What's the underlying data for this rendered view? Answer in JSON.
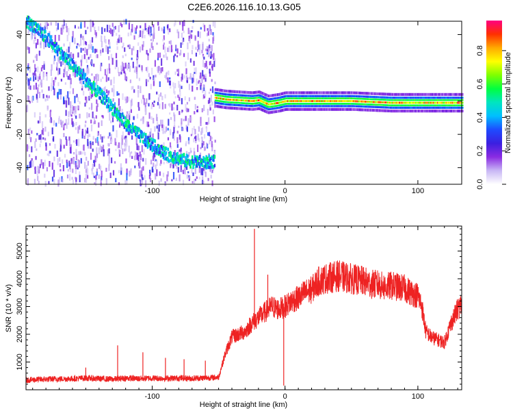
{
  "title": "C2E6.2026.116.10.13.G05",
  "colorbar": {
    "label": "Normalized spectral amplitude",
    "ticks": [
      "0.0",
      "0.2",
      "0.4",
      "0.6",
      "0.8"
    ],
    "tick_values": [
      0.0,
      0.2,
      0.4,
      0.6,
      0.8
    ],
    "range": [
      0.0,
      0.98
    ],
    "colormap": [
      "#ffffff",
      "#c9b8f5",
      "#8a2be2",
      "#3b1fe0",
      "#1e4bff",
      "#00bfff",
      "#00e5c0",
      "#00ff40",
      "#7fff00",
      "#ffff00",
      "#ffaa00",
      "#ff3000",
      "#ff0080"
    ]
  },
  "chart_data": [
    {
      "type": "heatmap",
      "title": "C2E6.2026.116.10.13.G05",
      "xlabel": "Height of straight line (km)",
      "ylabel": "Frequency (Hz)",
      "xlim": [
        -195,
        133
      ],
      "ylim": [
        -50,
        48
      ],
      "xticks": [
        -100,
        0,
        100
      ],
      "yticks": [
        -40,
        -20,
        0,
        20,
        40
      ],
      "xtick_labels": [
        "-100",
        "0",
        "100"
      ],
      "ytick_labels": [
        "-40",
        "-20",
        "0",
        "20",
        "40"
      ],
      "noise_region": {
        "x": [
          -195,
          -53
        ],
        "level": 0.15
      },
      "ridge": {
        "x": [
          -195,
          -180,
          -165,
          -150,
          -135,
          -120,
          -105,
          -90,
          -75,
          -60,
          -53
        ],
        "y": [
          48,
          38,
          25,
          12,
          0,
          -14,
          -24,
          -32,
          -36,
          -37,
          -36
        ],
        "level": 0.45
      },
      "band": {
        "x": [
          -53,
          -45,
          -35,
          -25,
          -20,
          -13,
          -5,
          0,
          20,
          50,
          80,
          90,
          110,
          133
        ],
        "y": [
          2,
          1,
          0.5,
          0,
          0.5,
          -2,
          -1,
          0,
          0,
          0,
          -1,
          -1,
          -1,
          -1
        ],
        "level": 0.9
      }
    },
    {
      "type": "line",
      "xlabel": "Height of straight line (km)",
      "ylabel": "SNR (10 * v/v)",
      "xlim": [
        -195,
        133
      ],
      "ylim": [
        0,
        5900
      ],
      "xticks": [
        -100,
        0,
        100
      ],
      "yticks": [
        1000,
        2000,
        3000,
        4000,
        5000
      ],
      "xtick_labels": [
        "-100",
        "0",
        "100"
      ],
      "ytick_labels": [
        "1000",
        "2000",
        "3000",
        "4000",
        "5000"
      ],
      "color": "#ee2222",
      "x": [
        -195,
        -180,
        -160,
        -150,
        -140,
        -130,
        -120,
        -110,
        -100,
        -90,
        -80,
        -70,
        -60,
        -50,
        -45,
        -40,
        -35,
        -30,
        -25,
        -20,
        -15,
        -10,
        -5,
        0,
        5,
        10,
        15,
        20,
        25,
        30,
        35,
        40,
        45,
        50,
        55,
        60,
        65,
        70,
        75,
        80,
        85,
        90,
        95,
        100,
        103,
        106,
        110,
        115,
        120,
        125,
        130,
        133
      ],
      "y": [
        350,
        380,
        400,
        420,
        400,
        380,
        420,
        400,
        420,
        410,
        420,
        410,
        430,
        450,
        1300,
        1900,
        2000,
        2100,
        2400,
        2600,
        2800,
        3000,
        2900,
        3000,
        3200,
        3300,
        3500,
        3600,
        3900,
        4000,
        4050,
        4100,
        4050,
        4000,
        3950,
        3900,
        3800,
        3800,
        3700,
        3750,
        3700,
        3650,
        3500,
        3400,
        3000,
        2100,
        1900,
        1800,
        1700,
        2400,
        2900,
        3100
      ],
      "spikes": [
        {
          "x": -150,
          "y": 800
        },
        {
          "x": -126,
          "y": 1600
        },
        {
          "x": -107,
          "y": 1350
        },
        {
          "x": -90,
          "y": 1150
        },
        {
          "x": -76,
          "y": 1100
        },
        {
          "x": -60,
          "y": 1050
        },
        {
          "x": -23,
          "y": 5800
        },
        {
          "x": -13,
          "y": 4150
        },
        {
          "x": -1,
          "y": 150
        }
      ]
    }
  ]
}
